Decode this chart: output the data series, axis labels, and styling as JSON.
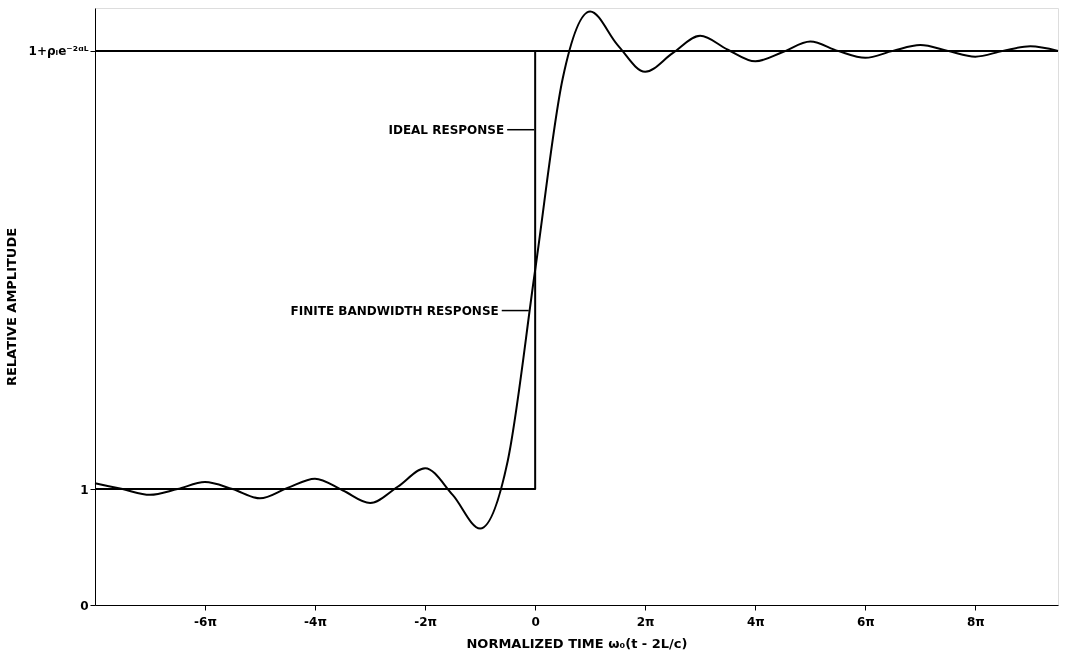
{
  "chart_data": {
    "type": "line",
    "xlabel": "NORMALIZED TIME ω₀(t - 2L/c)",
    "ylabel": "RELATIVE AMPLITUDE",
    "xlim": [
      -25.13,
      29.85
    ],
    "ylim": [
      0,
      5.15
    ],
    "xticks": [
      {
        "value": -18.85,
        "label": "-6π"
      },
      {
        "value": -12.57,
        "label": "-4π"
      },
      {
        "value": -6.28,
        "label": "-2π"
      },
      0,
      {
        "value": 6.28,
        "label": "2π"
      },
      {
        "value": 12.57,
        "label": "4π"
      },
      {
        "value": 18.85,
        "label": "6π"
      },
      {
        "value": 25.13,
        "label": "8π"
      }
    ],
    "yticks": [
      0,
      1,
      {
        "value": 4.78,
        "label": "1+ρₗe⁻²ᵅᴸ"
      }
    ],
    "grid": false,
    "marker": "none",
    "line_style": "solid",
    "series": [
      {
        "type": "step",
        "color": "#000000",
        "x": [
          -25.13,
          0,
          29.85
        ],
        "values": [
          1,
          4.78,
          4.78
        ]
      },
      {
        "color": "#000000",
        "x": [
          -25.13,
          -23.56,
          -21.99,
          -20.42,
          -18.85,
          -17.28,
          -15.71,
          -14.14,
          -12.57,
          -11.0,
          -9.42,
          -7.85,
          -6.28,
          -4.71,
          -3.14,
          -1.57,
          0,
          1.57,
          3.14,
          4.71,
          6.28,
          7.85,
          9.42,
          11.0,
          12.57,
          14.14,
          15.71,
          17.28,
          18.85,
          20.42,
          21.99,
          23.56,
          25.13,
          26.7,
          28.27,
          29.85
        ],
        "values": [
          1.05,
          1.0,
          0.95,
          1.0,
          1.06,
          1.0,
          0.92,
          1.01,
          1.09,
          0.99,
          0.88,
          1.02,
          1.18,
          0.95,
          0.66,
          1.24,
          2.89,
          4.54,
          5.12,
          4.83,
          4.6,
          4.76,
          4.91,
          4.79,
          4.69,
          4.77,
          4.86,
          4.78,
          4.72,
          4.78,
          4.83,
          4.78,
          4.73,
          4.78,
          4.82,
          4.78
        ]
      }
    ],
    "ref_lines": [
      {
        "axis": "y",
        "value": 4.78,
        "label": null
      }
    ],
    "annotations": [
      {
        "text": "IDEAL RESPONSE",
        "x": 0,
        "y": 4.1
      },
      {
        "text": "FINITE BANDWIDTH RESPONSE",
        "x": -0.31,
        "y": 2.54
      }
    ]
  }
}
